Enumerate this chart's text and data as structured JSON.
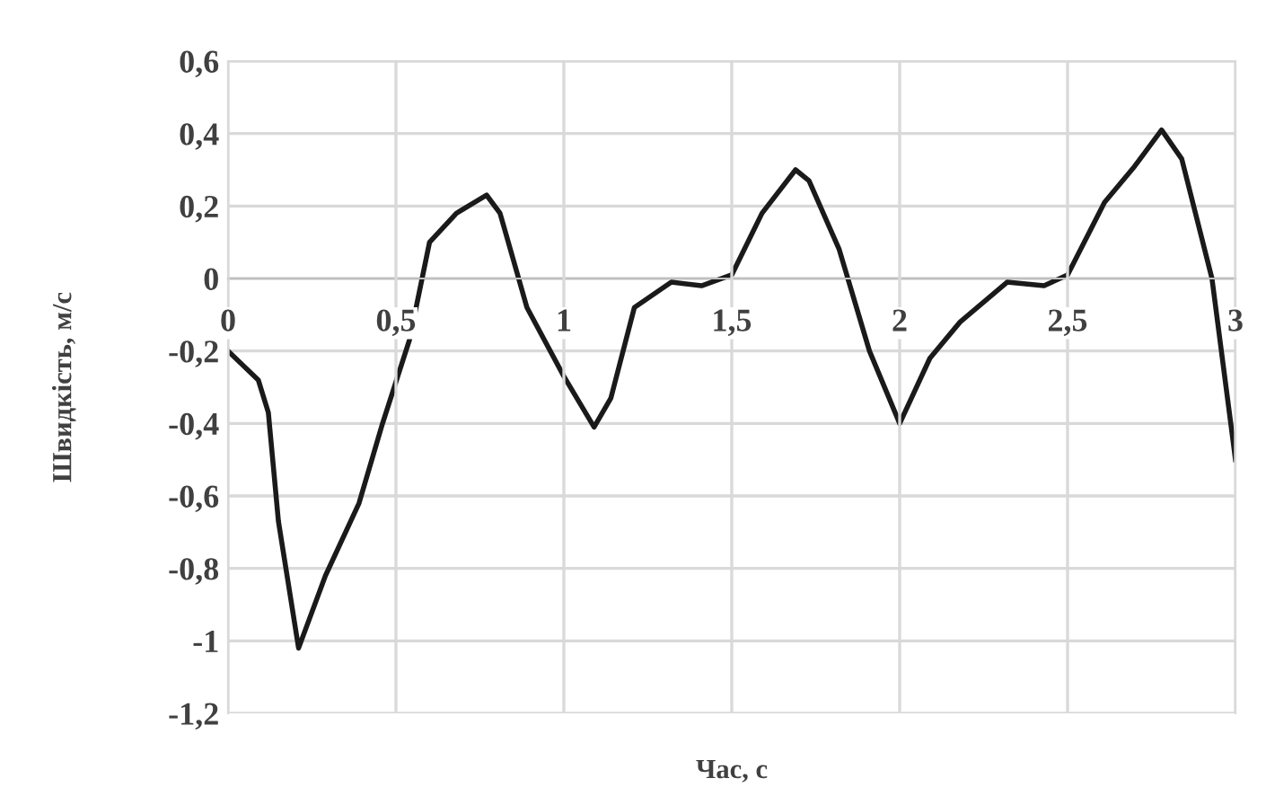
{
  "chart_data": {
    "type": "line",
    "xlabel": "Час, с",
    "ylabel": "Швидкість, м/с",
    "x": [
      0,
      0.09,
      0.12,
      0.15,
      0.21,
      0.29,
      0.39,
      0.46,
      0.54,
      0.6,
      0.68,
      0.77,
      0.81,
      0.89,
      1.0,
      1.09,
      1.14,
      1.21,
      1.32,
      1.41,
      1.5,
      1.59,
      1.69,
      1.73,
      1.82,
      1.91,
      2.0,
      2.09,
      2.18,
      2.32,
      2.43,
      2.5,
      2.61,
      2.7,
      2.78,
      2.84,
      2.93,
      3.0
    ],
    "series": [
      {
        "color": "#1a1a1a",
        "values": [
          -0.2,
          -0.28,
          -0.37,
          -0.67,
          -1.02,
          -0.82,
          -0.62,
          -0.4,
          -0.17,
          0.1,
          0.18,
          0.23,
          0.18,
          -0.08,
          -0.27,
          -0.41,
          -0.33,
          -0.08,
          -0.01,
          -0.02,
          0.01,
          0.18,
          0.3,
          0.27,
          0.08,
          -0.2,
          -0.4,
          -0.22,
          -0.12,
          -0.01,
          -0.02,
          0.01,
          0.21,
          0.31,
          0.41,
          0.33,
          0.0,
          -0.5
        ]
      }
    ],
    "xlim": [
      0,
      3
    ],
    "ylim": [
      -1.2,
      0.6
    ],
    "xticks": [
      0,
      {
        "value": 0.5,
        "label": "0,5"
      },
      1,
      {
        "value": 1.5,
        "label": "1,5"
      },
      2,
      {
        "value": 2.5,
        "label": "2,5"
      },
      3
    ],
    "yticks": [
      {
        "value": -1.2,
        "label": "-1,2"
      },
      -1,
      {
        "value": -0.8,
        "label": "-0,8"
      },
      {
        "value": -0.6,
        "label": "-0,6"
      },
      {
        "value": -0.4,
        "label": "-0,4"
      },
      {
        "value": -0.2,
        "label": "-0,2"
      },
      0,
      {
        "value": 0.2,
        "label": "0,2"
      },
      {
        "value": 0.4,
        "label": "0,4"
      },
      {
        "value": 0.6,
        "label": "0,6"
      }
    ],
    "grid": true,
    "marker": "none",
    "line_style": "solid"
  }
}
